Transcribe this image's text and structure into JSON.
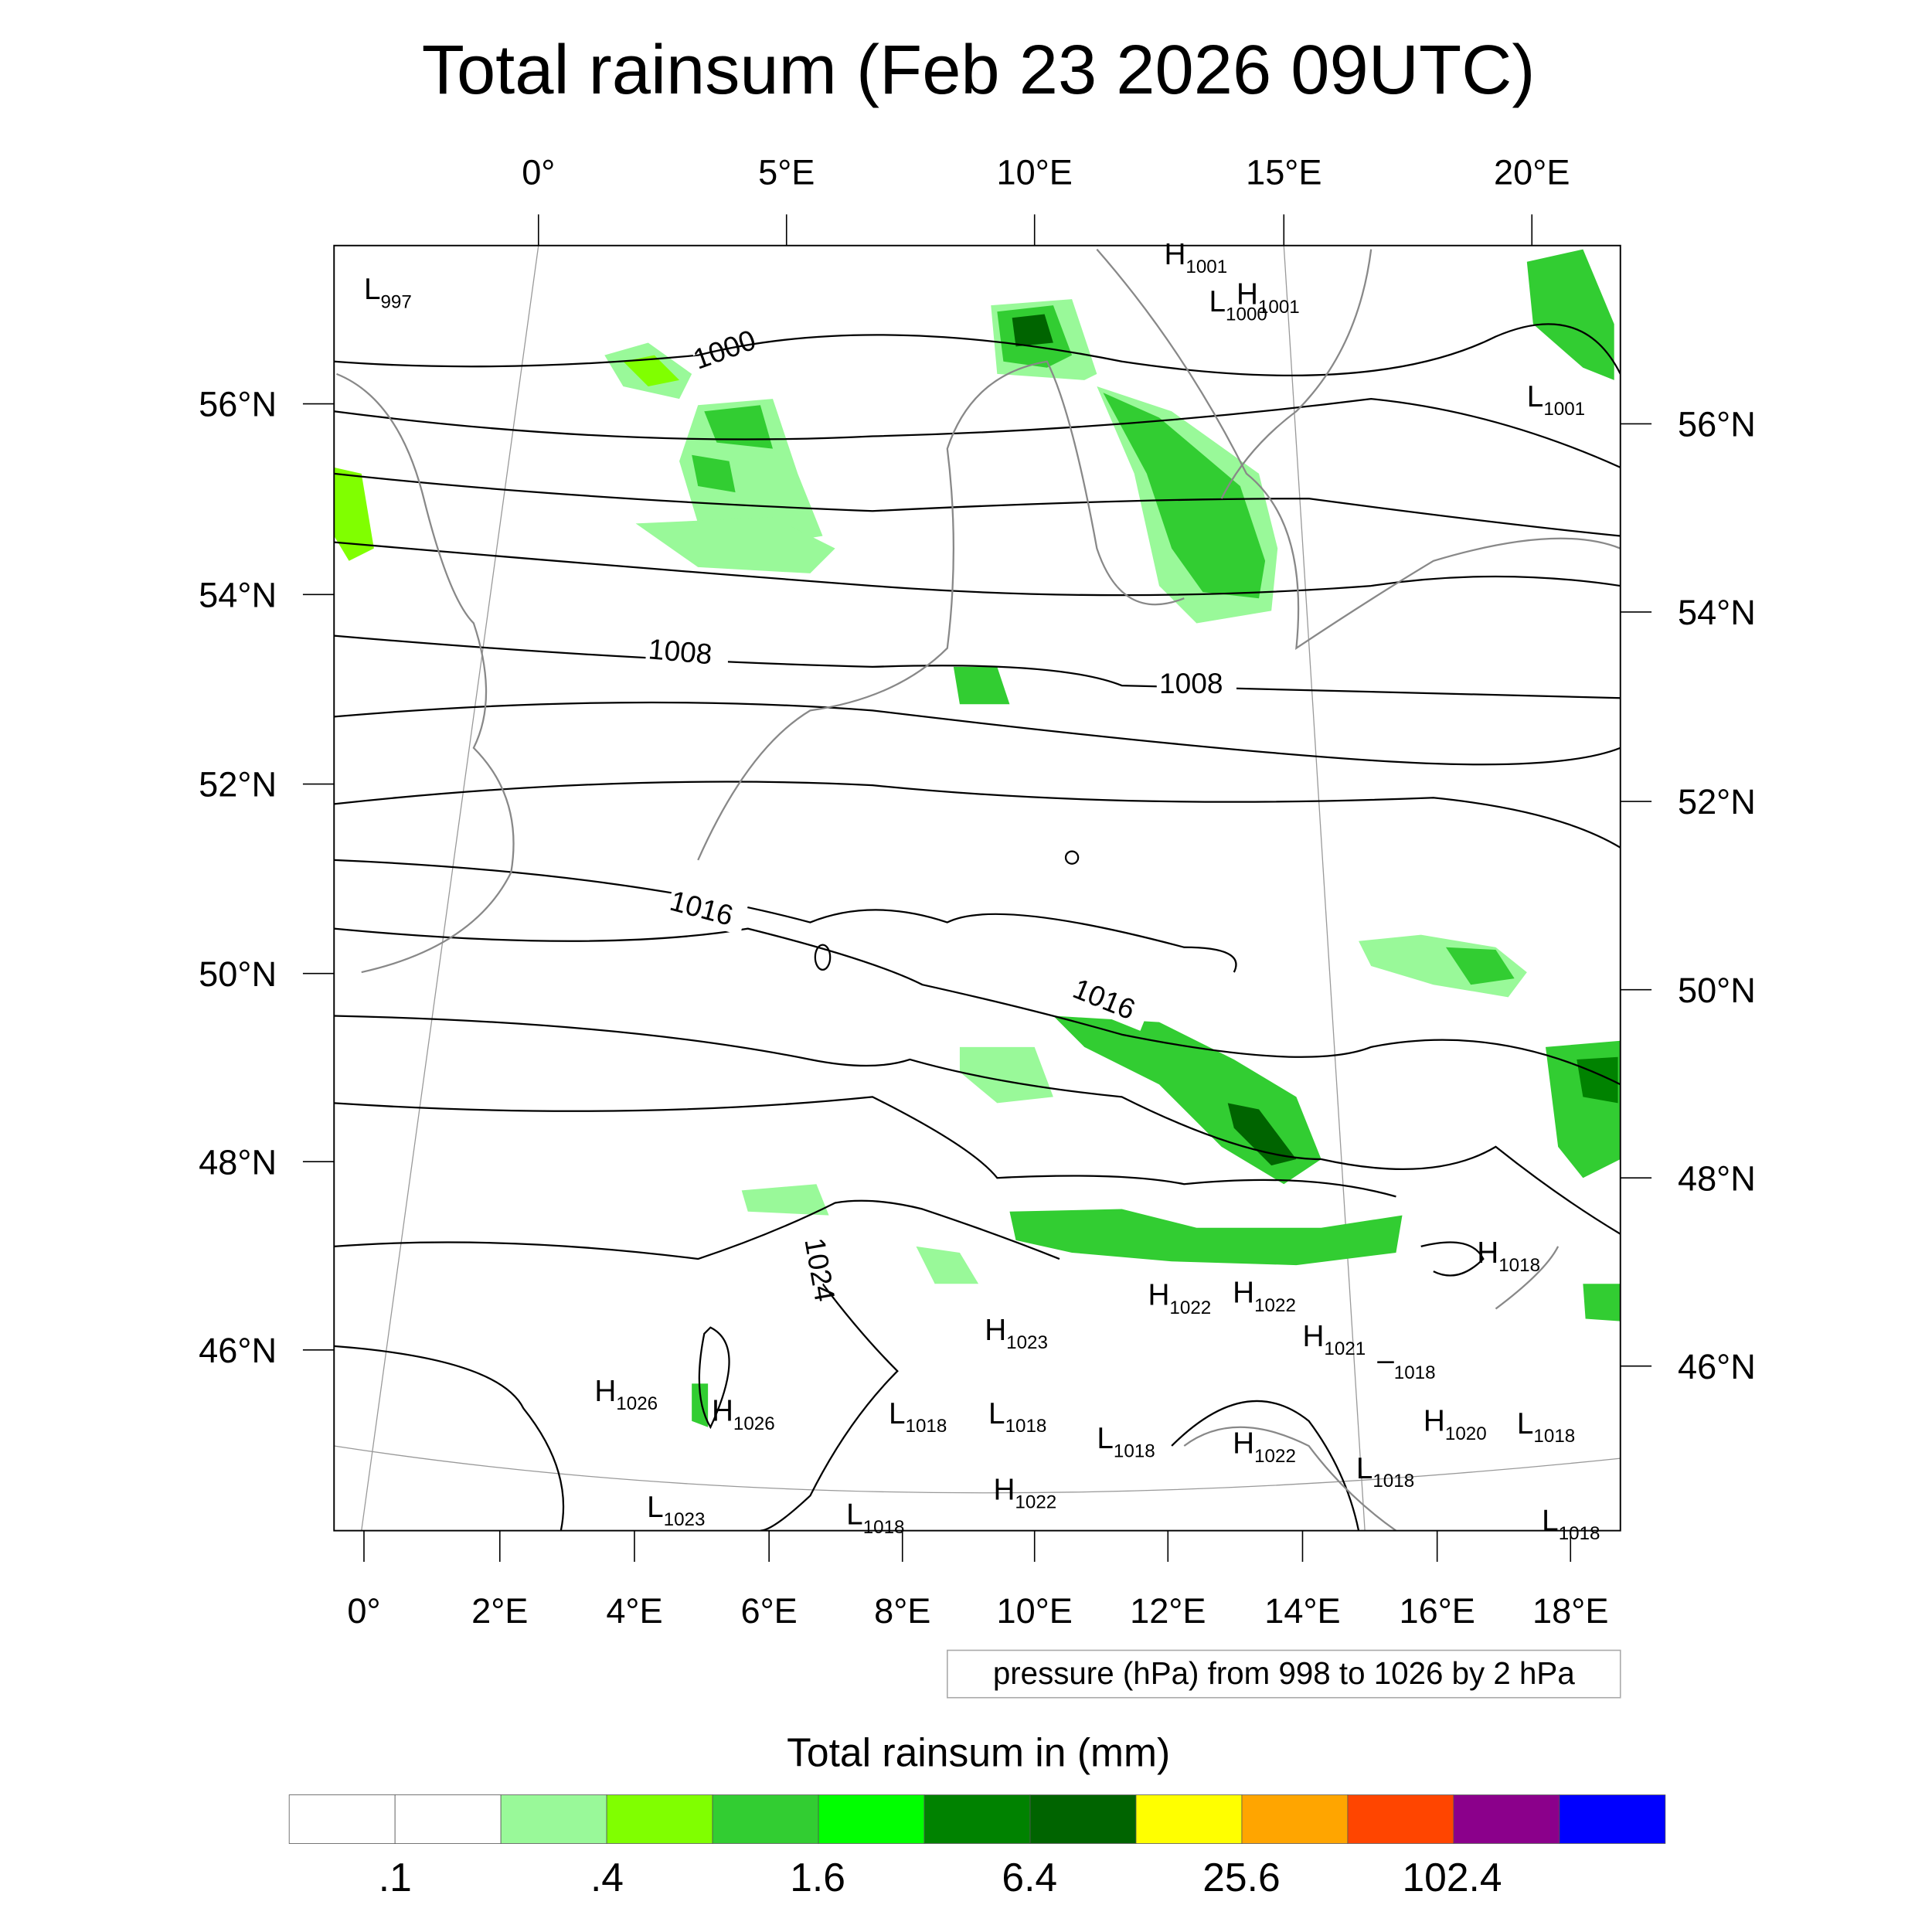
{
  "chart_data": {
    "type": "heatmap",
    "title": "Total rainsum (Feb 23 2026 09UTC)",
    "map_projection_note": "pressure (hPa) from 998 to 1026 by 2 hPa",
    "top_lon_ticks": [
      "0°",
      "5°E",
      "10°E",
      "15°E",
      "20°E"
    ],
    "bottom_lon_ticks": [
      "0°",
      "2°E",
      "4°E",
      "6°E",
      "8°E",
      "10°E",
      "12°E",
      "14°E",
      "16°E",
      "18°E"
    ],
    "left_lat_ticks": [
      "56°N",
      "54°N",
      "52°N",
      "50°N",
      "48°N",
      "46°N"
    ],
    "right_lat_ticks": [
      "56°N",
      "54°N",
      "52°N",
      "50°N",
      "48°N",
      "46°N"
    ],
    "contour": {
      "variable": "pressure",
      "units": "hPa",
      "min": 998,
      "max": 1026,
      "step": 2
    },
    "contour_labels": [
      "1000",
      "1008",
      "1008",
      "1016",
      "1016",
      "1024"
    ],
    "pressure_centers": [
      {
        "type": "L",
        "value": "997"
      },
      {
        "type": "H",
        "value": "1001"
      },
      {
        "type": "L",
        "value": "1000"
      },
      {
        "type": "H",
        "value": "1001"
      },
      {
        "type": "L",
        "value": "1001"
      },
      {
        "type": "H",
        "value": "1018"
      },
      {
        "type": "H",
        "value": "1022"
      },
      {
        "type": "H",
        "value": "1022"
      },
      {
        "type": "H",
        "value": "1023"
      },
      {
        "type": "H",
        "value": "1021"
      },
      {
        "type": "",
        "value": "1018"
      },
      {
        "type": "H",
        "value": "1026"
      },
      {
        "type": "H",
        "value": "1026"
      },
      {
        "type": "L",
        "value": "1018"
      },
      {
        "type": "L",
        "value": "1018"
      },
      {
        "type": "L",
        "value": "1018"
      },
      {
        "type": "H",
        "value": "1022"
      },
      {
        "type": "L",
        "value": "1018"
      },
      {
        "type": "H",
        "value": "1020"
      },
      {
        "type": "L",
        "value": "1018"
      },
      {
        "type": "L",
        "value": "1023"
      },
      {
        "type": "H",
        "value": "1022"
      },
      {
        "type": "L",
        "value": "1018"
      },
      {
        "type": "L",
        "value": "1018"
      }
    ],
    "colorbar": {
      "title": "Total rainsum in (mm)",
      "colors": [
        "#ffffff",
        "#ffffff",
        "#99f999",
        "#80ff00",
        "#32cd32",
        "#00ff00",
        "#008200",
        "#006400",
        "#ffff00",
        "#ffa500",
        "#ff4500",
        "#8b008b",
        "#0000ff"
      ],
      "labels": [
        ".1",
        ".4",
        "1.6",
        "6.4",
        "25.6",
        "102.4"
      ]
    }
  }
}
